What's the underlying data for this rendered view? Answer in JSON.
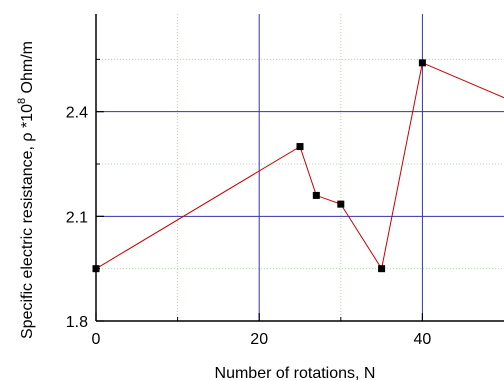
{
  "chart_data": {
    "type": "line",
    "xlabel": "Number of rotations, N",
    "ylabel": {
      "prefix": "Specific electric resistance, ",
      "symbol": "ρ",
      "mult": " *10",
      "exp": "8",
      "unit": " Ohm/m"
    },
    "xlim": [
      0,
      50
    ],
    "ylim": [
      1.8,
      2.68
    ],
    "x_major_ticks": [
      0,
      20,
      40
    ],
    "x_minor_ticks": [
      10,
      30
    ],
    "y_major_ticks": [
      1.8,
      2.1,
      2.4
    ],
    "y_minor_ticks": [
      1.95,
      2.25,
      2.55
    ],
    "x_tick_labels": [
      "0",
      "20",
      "40"
    ],
    "y_tick_labels": [
      "1.8",
      "2.1",
      "2.4"
    ],
    "grid": true,
    "series": [
      {
        "x": [
          0,
          25,
          27,
          30,
          35,
          40,
          50
        ],
        "y": [
          1.95,
          2.3,
          2.16,
          2.135,
          1.95,
          2.54,
          2.44
        ]
      }
    ],
    "colors": {
      "line": "#cc0000",
      "marker": "#000000",
      "major_grid": "#3333aa",
      "minor_grid": "#aaddaa",
      "axis": "#000000"
    }
  }
}
